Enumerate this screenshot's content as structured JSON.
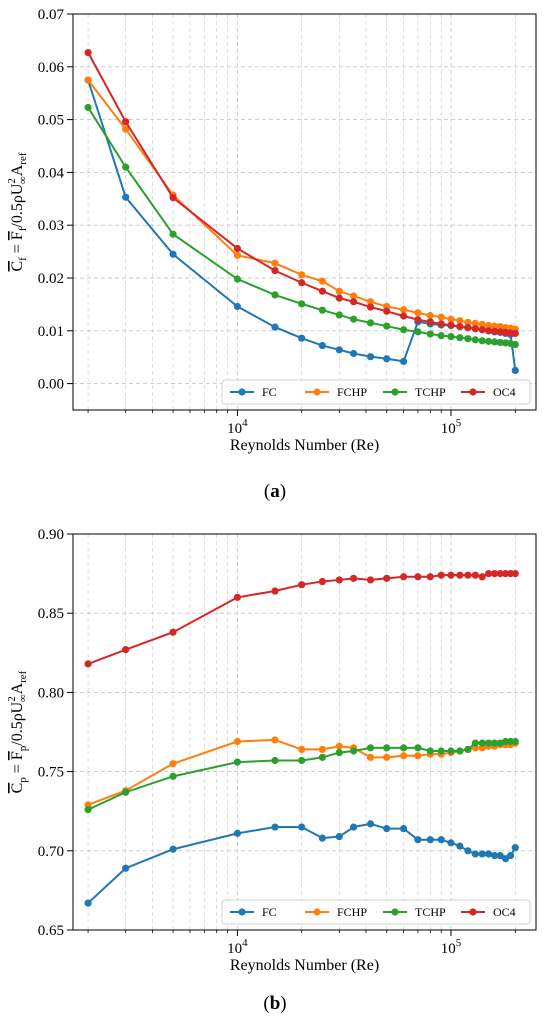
{
  "chart_data": [
    {
      "type": "line",
      "panel": "a",
      "caption_letter": "a",
      "xlabel": "Reynolds Number (Re)",
      "ylabel_main": "C",
      "ylabel_main_sub": "f",
      "ylabel_eq": " = ",
      "ylabel_f": "F",
      "ylabel_f_sub": "f",
      "ylabel_rest1": "/0.5ρU",
      "ylabel_sup": "2",
      "ylabel_inf": "∞",
      "ylabel_a": "A",
      "ylabel_a_sub": "ref",
      "xscale": "log",
      "xlim": [
        1700,
        250000
      ],
      "ylim": [
        -0.005,
        0.07
      ],
      "yticks": [
        0.0,
        0.01,
        0.02,
        0.03,
        0.04,
        0.05,
        0.06,
        0.07
      ],
      "ytick_labels": [
        "0.00",
        "0.01",
        "0.02",
        "0.03",
        "0.04",
        "0.05",
        "0.06",
        "0.07"
      ],
      "xticks": [
        {
          "value": 10000,
          "base": "10",
          "exp": "4"
        },
        {
          "value": 100000,
          "base": "10",
          "exp": "5"
        }
      ],
      "grid": true,
      "legend_position": "lower-right",
      "series": [
        {
          "name": "FC",
          "color": "#1f77b4",
          "x": [
            2000,
            3000,
            5000,
            10000,
            15000,
            20000,
            25000,
            30000,
            35000,
            42000,
            50000,
            60000,
            70000,
            80000,
            90000,
            100000,
            110000,
            120000,
            130000,
            140000,
            150000,
            160000,
            170000,
            180000,
            190000,
            200000
          ],
          "y": [
            0.0575,
            0.0353,
            0.0245,
            0.0146,
            0.0107,
            0.0086,
            0.0072,
            0.0064,
            0.0057,
            0.0051,
            0.0047,
            0.0042,
            0.0117,
            0.0113,
            0.0111,
            0.011,
            0.0108,
            0.0106,
            0.0104,
            0.0102,
            0.01,
            0.0098,
            0.0097,
            0.0095,
            0.0093,
            0.0025
          ]
        },
        {
          "name": "FCHP",
          "color": "#ff7f0e",
          "x": [
            2000,
            3000,
            5000,
            10000,
            15000,
            20000,
            25000,
            30000,
            35000,
            42000,
            50000,
            60000,
            70000,
            80000,
            90000,
            100000,
            110000,
            120000,
            130000,
            140000,
            150000,
            160000,
            170000,
            180000,
            190000,
            200000
          ],
          "y": [
            0.0575,
            0.0482,
            0.0357,
            0.0243,
            0.0228,
            0.0206,
            0.0194,
            0.0175,
            0.0166,
            0.0155,
            0.0146,
            0.014,
            0.0134,
            0.0129,
            0.0126,
            0.0122,
            0.0119,
            0.0116,
            0.0114,
            0.0112,
            0.011,
            0.0109,
            0.0108,
            0.0106,
            0.0105,
            0.0103
          ]
        },
        {
          "name": "TCHP",
          "color": "#2ca02c",
          "x": [
            2000,
            3000,
            5000,
            10000,
            15000,
            20000,
            25000,
            30000,
            35000,
            42000,
            50000,
            60000,
            70000,
            80000,
            90000,
            100000,
            110000,
            120000,
            130000,
            140000,
            150000,
            160000,
            170000,
            180000,
            190000,
            200000
          ],
          "y": [
            0.0523,
            0.041,
            0.0283,
            0.0198,
            0.0168,
            0.0151,
            0.0139,
            0.013,
            0.0122,
            0.0115,
            0.0109,
            0.0102,
            0.0098,
            0.0094,
            0.0091,
            0.0089,
            0.0087,
            0.0085,
            0.0083,
            0.0081,
            0.008,
            0.0079,
            0.0078,
            0.0077,
            0.0076,
            0.0074
          ]
        },
        {
          "name": "OC4",
          "color": "#d62728",
          "x": [
            2000,
            3000,
            5000,
            10000,
            15000,
            20000,
            25000,
            30000,
            35000,
            42000,
            50000,
            60000,
            70000,
            80000,
            90000,
            100000,
            110000,
            120000,
            130000,
            140000,
            150000,
            160000,
            170000,
            180000,
            190000,
            200000
          ],
          "y": [
            0.0627,
            0.0496,
            0.0352,
            0.0256,
            0.0214,
            0.0191,
            0.0175,
            0.0162,
            0.0155,
            0.0145,
            0.0137,
            0.0128,
            0.0121,
            0.0117,
            0.0113,
            0.0111,
            0.0108,
            0.0106,
            0.0104,
            0.0102,
            0.01,
            0.0099,
            0.0098,
            0.0097,
            0.0096,
            0.0095
          ]
        }
      ]
    },
    {
      "type": "line",
      "panel": "b",
      "caption_letter": "b",
      "xlabel": "Reynolds Number (Re)",
      "ylabel_main": "C",
      "ylabel_main_sub": "p",
      "ylabel_eq": " = ",
      "ylabel_f": "F",
      "ylabel_f_sub": "p",
      "ylabel_rest1": "/0.5ρU",
      "ylabel_sup": "2",
      "ylabel_inf": "∞",
      "ylabel_a": "A",
      "ylabel_a_sub": "ref",
      "xscale": "log",
      "xlim": [
        1700,
        250000
      ],
      "ylim": [
        0.65,
        0.9
      ],
      "yticks": [
        0.65,
        0.7,
        0.75,
        0.8,
        0.85,
        0.9
      ],
      "ytick_labels": [
        "0.65",
        "0.70",
        "0.75",
        "0.80",
        "0.85",
        "0.90"
      ],
      "xticks": [
        {
          "value": 10000,
          "base": "10",
          "exp": "4"
        },
        {
          "value": 100000,
          "base": "10",
          "exp": "5"
        }
      ],
      "grid": true,
      "legend_position": "lower-right",
      "series": [
        {
          "name": "FC",
          "color": "#1f77b4",
          "x": [
            2000,
            3000,
            5000,
            10000,
            15000,
            20000,
            25000,
            30000,
            35000,
            42000,
            50000,
            60000,
            70000,
            80000,
            90000,
            100000,
            110000,
            120000,
            130000,
            140000,
            150000,
            160000,
            170000,
            180000,
            190000,
            200000
          ],
          "y": [
            0.667,
            0.689,
            0.701,
            0.711,
            0.715,
            0.715,
            0.708,
            0.709,
            0.715,
            0.717,
            0.714,
            0.714,
            0.707,
            0.707,
            0.707,
            0.705,
            0.703,
            0.7,
            0.698,
            0.698,
            0.698,
            0.697,
            0.697,
            0.695,
            0.697,
            0.702
          ]
        },
        {
          "name": "FCHP",
          "color": "#ff7f0e",
          "x": [
            2000,
            3000,
            5000,
            10000,
            15000,
            20000,
            25000,
            30000,
            35000,
            42000,
            50000,
            60000,
            70000,
            80000,
            90000,
            100000,
            110000,
            120000,
            130000,
            140000,
            150000,
            160000,
            170000,
            180000,
            190000,
            200000
          ],
          "y": [
            0.729,
            0.738,
            0.755,
            0.769,
            0.77,
            0.764,
            0.764,
            0.766,
            0.765,
            0.759,
            0.759,
            0.76,
            0.76,
            0.761,
            0.761,
            0.762,
            0.763,
            0.764,
            0.765,
            0.765,
            0.766,
            0.766,
            0.767,
            0.767,
            0.767,
            0.768
          ]
        },
        {
          "name": "TCHP",
          "color": "#2ca02c",
          "x": [
            2000,
            3000,
            5000,
            10000,
            15000,
            20000,
            25000,
            30000,
            35000,
            42000,
            50000,
            60000,
            70000,
            80000,
            90000,
            100000,
            110000,
            120000,
            130000,
            140000,
            150000,
            160000,
            170000,
            180000,
            190000,
            200000
          ],
          "y": [
            0.726,
            0.737,
            0.747,
            0.756,
            0.757,
            0.757,
            0.759,
            0.762,
            0.763,
            0.765,
            0.765,
            0.765,
            0.765,
            0.763,
            0.763,
            0.763,
            0.763,
            0.764,
            0.768,
            0.768,
            0.768,
            0.768,
            0.768,
            0.769,
            0.769,
            0.769
          ]
        },
        {
          "name": "OC4",
          "color": "#d62728",
          "x": [
            2000,
            3000,
            5000,
            10000,
            15000,
            20000,
            25000,
            30000,
            35000,
            42000,
            50000,
            60000,
            70000,
            80000,
            90000,
            100000,
            110000,
            120000,
            130000,
            140000,
            150000,
            160000,
            170000,
            180000,
            190000,
            200000
          ],
          "y": [
            0.818,
            0.827,
            0.838,
            0.86,
            0.864,
            0.868,
            0.87,
            0.871,
            0.872,
            0.871,
            0.872,
            0.873,
            0.873,
            0.873,
            0.874,
            0.874,
            0.874,
            0.874,
            0.874,
            0.873,
            0.875,
            0.875,
            0.875,
            0.875,
            0.875,
            0.875
          ]
        }
      ]
    }
  ]
}
